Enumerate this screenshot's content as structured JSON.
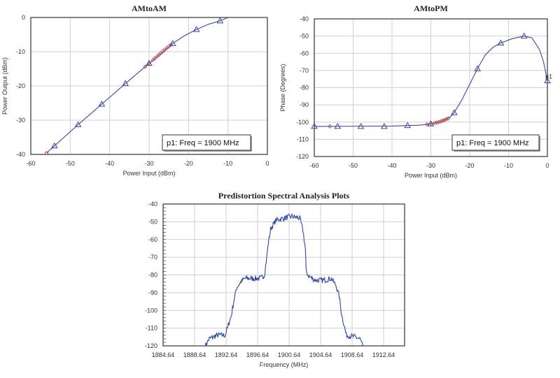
{
  "chart_data": [
    {
      "id": "amam",
      "type": "line",
      "title": "AMtoAM",
      "xlabel": "Power Input (dBm)",
      "ylabel": "Power Output (dBm)",
      "xlim": [
        -60,
        0
      ],
      "ylim": [
        -40,
        0
      ],
      "xticks": [
        -60,
        -50,
        -40,
        -30,
        -20,
        -10,
        0
      ],
      "yticks": [
        0,
        -10,
        -20,
        -30,
        -40
      ],
      "grid": true,
      "legend": "p1: Freq = 1900 MHz",
      "legend_position": "bottom-right",
      "line": {
        "x": [
          -56,
          -54,
          -48,
          -42,
          -36,
          -30,
          -24,
          -21,
          -18,
          -15,
          -12,
          -10
        ],
        "y": [
          -39.6,
          -37.5,
          -31.3,
          -25.3,
          -19.3,
          -13.4,
          -7.6,
          -5.3,
          -3.5,
          -2.0,
          -1.0,
          0
        ]
      },
      "triangles": {
        "x": [
          -54,
          -48,
          -42,
          -36,
          -30,
          -24,
          -18,
          -12
        ],
        "y": [
          -37.5,
          -31.3,
          -25.3,
          -19.3,
          -13.4,
          -7.6,
          -3.5,
          -1.0
        ]
      },
      "diamonds": {
        "x": [
          -56,
          -31,
          -30,
          -29,
          -28.5,
          -28,
          -27.5,
          -27,
          -26.5,
          -26,
          -25.5,
          -25,
          -24.5
        ],
        "y": [
          -39.6,
          -14.4,
          -13.4,
          -12.4,
          -11.9,
          -11.4,
          -10.9,
          -10.4,
          -9.9,
          -9.4,
          -8.9,
          -8.5,
          -8.0
        ]
      },
      "colors": {
        "line": "#3b4a9c",
        "triangle": "#3b4a9c",
        "diamond": "#c04040"
      }
    },
    {
      "id": "ampm",
      "type": "line",
      "title": "AMtoPM",
      "xlabel": "Power Input (dBm)",
      "ylabel": "Phase (Degrees)",
      "xlim": [
        -60,
        0
      ],
      "ylim": [
        -120,
        -40
      ],
      "xticks": [
        -60,
        -50,
        -40,
        -30,
        -20,
        -10,
        0
      ],
      "yticks": [
        -40,
        -50,
        -60,
        -70,
        -80,
        -90,
        -100,
        -110,
        -120
      ],
      "grid": true,
      "legend": "p1: Freq = 1900 MHz",
      "legend_position": "bottom-right",
      "marker_label": "p1",
      "line": {
        "x": [
          -60,
          -40,
          -33,
          -30,
          -27,
          -25,
          -24,
          -22,
          -20,
          -18,
          -16,
          -14,
          -12,
          -9,
          -6,
          -4,
          -2,
          -1,
          0
        ],
        "y": [
          -102.5,
          -102.3,
          -101.8,
          -101,
          -99.5,
          -97,
          -94.5,
          -87,
          -78,
          -69,
          -61,
          -56.5,
          -54,
          -51.5,
          -50,
          -51,
          -58,
          -65,
          -76
        ]
      },
      "triangles": {
        "x": [
          -60,
          -54,
          -48,
          -42,
          -36,
          -30,
          -24,
          -18,
          -12,
          -6,
          0
        ],
        "y": [
          -102.5,
          -102.5,
          -102.5,
          -102.5,
          -102,
          -101,
          -94.5,
          -69,
          -54,
          -50,
          -76
        ]
      },
      "diamonds": {
        "x": [
          -56,
          -31,
          -30,
          -29,
          -28.5,
          -28,
          -27.5,
          -27,
          -26.5,
          -26,
          -25.5
        ],
        "y": [
          -102.5,
          -101.3,
          -101,
          -100.6,
          -100.3,
          -100,
          -99.6,
          -99.2,
          -98.8,
          -98.3,
          -97.8
        ]
      },
      "colors": {
        "line": "#3b4a9c",
        "triangle": "#3b4a9c",
        "diamond": "#c04040"
      }
    },
    {
      "id": "spectrum",
      "type": "line",
      "title": "Predistortion Spectral Analysis Plots",
      "xlabel": "Frequency (MHz)",
      "ylabel": "",
      "xlim": [
        1884.64,
        1915.3
      ],
      "ylim": [
        -120,
        -40
      ],
      "xticks": [
        1884.64,
        1888.64,
        1892.64,
        1896.64,
        1900.64,
        1904.64,
        1908.64,
        1912.64
      ],
      "yticks": [
        -40,
        -50,
        -60,
        -70,
        -80,
        -90,
        -100,
        -110,
        -120
      ],
      "grid": true,
      "noise_db": 1.6,
      "line": {
        "x": [
          1890.0,
          1890.5,
          1891.5,
          1892.5,
          1892.8,
          1893.3,
          1893.6,
          1894.0,
          1894.5,
          1895.0,
          1896.0,
          1897.0,
          1897.5,
          1897.8,
          1898.0,
          1898.3,
          1899.0,
          1900.0,
          1901.0,
          1902.0,
          1902.4,
          1902.7,
          1902.8,
          1903.2,
          1904.0,
          1905.0,
          1906.0,
          1906.6,
          1907.0,
          1907.3,
          1907.6,
          1907.9,
          1909.0,
          1909.6,
          1910.0
        ],
        "y": [
          -120,
          -116,
          -114,
          -114,
          -110,
          -103,
          -95,
          -87,
          -84,
          -82,
          -82,
          -82,
          -80,
          -70,
          -62,
          -54,
          -49,
          -48,
          -47,
          -48,
          -55,
          -65,
          -78,
          -81,
          -83,
          -83,
          -82,
          -86,
          -92,
          -102,
          -108,
          -114,
          -115,
          -116,
          -120
        ]
      },
      "colors": {
        "line": "#2f46a0"
      }
    }
  ]
}
